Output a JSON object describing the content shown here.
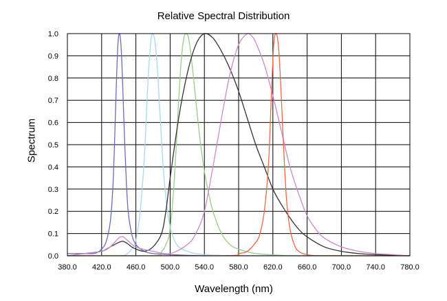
{
  "chart_data": {
    "type": "line",
    "title": "Relative Spectral Distribution",
    "xlabel": "Wavelength (nm)",
    "ylabel": "Spectrum",
    "xlim": [
      380,
      780
    ],
    "ylim": [
      0,
      1
    ],
    "grid": true,
    "legend": "none",
    "x_ticks": [
      "380.0",
      "420.0",
      "460.0",
      "500.0",
      "540.0",
      "580.0",
      "620.0",
      "660.0",
      "700.0",
      "740.0",
      "780.0"
    ],
    "y_ticks": [
      "0.0",
      "0.1",
      "0.2",
      "0.3",
      "0.4",
      "0.5",
      "0.6",
      "0.7",
      "0.8",
      "0.9",
      "1.0"
    ],
    "series": [
      {
        "color": "#6b6bbd",
        "x": [
          380,
          400,
          410,
          415,
          420,
          425,
          430,
          433,
          435,
          437,
          439,
          441,
          443,
          445,
          447,
          449,
          451,
          455,
          460,
          470,
          480,
          500,
          540,
          600,
          780
        ],
        "y": [
          0.01,
          0.01,
          0.01,
          0.015,
          0.03,
          0.06,
          0.15,
          0.3,
          0.5,
          0.75,
          0.95,
          1.0,
          0.92,
          0.72,
          0.5,
          0.32,
          0.2,
          0.1,
          0.05,
          0.02,
          0.01,
          0.005,
          0.0,
          0.0,
          0.0
        ]
      },
      {
        "color": "#a9d9e8",
        "x": [
          380,
          440,
          450,
          455,
          460,
          465,
          470,
          473,
          476,
          479,
          482,
          485,
          488,
          491,
          494,
          497,
          500,
          505,
          510,
          520,
          540,
          600,
          780
        ],
        "y": [
          0.0,
          0.0,
          0.01,
          0.03,
          0.07,
          0.2,
          0.45,
          0.7,
          0.9,
          1.0,
          0.97,
          0.85,
          0.65,
          0.45,
          0.3,
          0.2,
          0.13,
          0.07,
          0.04,
          0.02,
          0.005,
          0.0,
          0.0
        ]
      },
      {
        "color": "#99cc88",
        "x": [
          380,
          480,
          490,
          495,
          500,
          505,
          510,
          513,
          516,
          519,
          522,
          526,
          530,
          535,
          540,
          545,
          550,
          560,
          570,
          580,
          600,
          640,
          660,
          780
        ],
        "y": [
          0.0,
          0.0,
          0.02,
          0.05,
          0.12,
          0.35,
          0.7,
          0.88,
          0.98,
          1.0,
          0.97,
          0.85,
          0.7,
          0.52,
          0.38,
          0.28,
          0.2,
          0.1,
          0.05,
          0.03,
          0.01,
          0.0,
          0.0,
          0.0
        ]
      },
      {
        "color": "#333333",
        "x": [
          380,
          400,
          420,
          430,
          440,
          445,
          450,
          455,
          460,
          470,
          480,
          490,
          495,
          500,
          510,
          520,
          530,
          540,
          550,
          560,
          570,
          580,
          590,
          600,
          610,
          620,
          630,
          640,
          650,
          660,
          680,
          700,
          720,
          740,
          780
        ],
        "y": [
          0.0,
          0.01,
          0.02,
          0.04,
          0.06,
          0.065,
          0.055,
          0.04,
          0.03,
          0.02,
          0.04,
          0.1,
          0.2,
          0.35,
          0.62,
          0.82,
          0.95,
          1.0,
          0.98,
          0.92,
          0.84,
          0.74,
          0.62,
          0.5,
          0.4,
          0.3,
          0.23,
          0.17,
          0.12,
          0.085,
          0.04,
          0.02,
          0.01,
          0.005,
          0.0
        ]
      },
      {
        "color": "#cc88cc",
        "x": [
          380,
          400,
          420,
          430,
          440,
          445,
          450,
          460,
          480,
          500,
          520,
          530,
          540,
          550,
          560,
          570,
          580,
          590,
          595,
          600,
          610,
          620,
          630,
          640,
          650,
          660,
          670,
          680,
          700,
          720,
          740,
          760,
          780
        ],
        "y": [
          0.0,
          0.01,
          0.02,
          0.04,
          0.08,
          0.085,
          0.07,
          0.04,
          0.02,
          0.01,
          0.05,
          0.1,
          0.2,
          0.4,
          0.62,
          0.82,
          0.95,
          1.0,
          0.99,
          0.96,
          0.86,
          0.72,
          0.56,
          0.4,
          0.28,
          0.18,
          0.12,
          0.08,
          0.04,
          0.02,
          0.01,
          0.005,
          0.0
        ]
      },
      {
        "color": "#ee6644",
        "x": [
          380,
          560,
          580,
          590,
          600,
          605,
          610,
          615,
          618,
          621,
          624,
          627,
          630,
          633,
          636,
          640,
          645,
          650,
          660,
          680,
          780
        ],
        "y": [
          0.0,
          0.0,
          0.01,
          0.02,
          0.06,
          0.1,
          0.2,
          0.42,
          0.7,
          0.95,
          1.0,
          0.92,
          0.7,
          0.45,
          0.25,
          0.12,
          0.05,
          0.02,
          0.005,
          0.0,
          0.0
        ]
      }
    ]
  }
}
